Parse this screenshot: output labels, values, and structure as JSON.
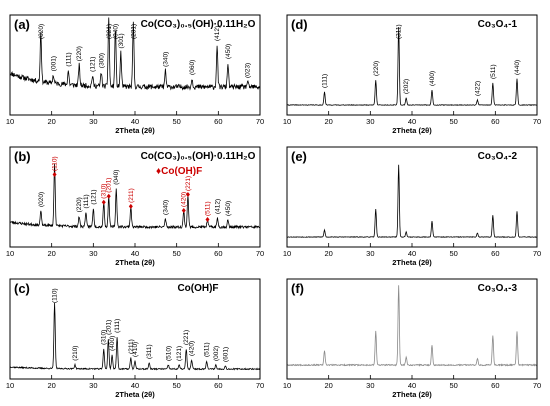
{
  "chart_data": [
    {
      "id": "a",
      "type": "line",
      "panel_label": "(a)",
      "title": "Co(CO₃)₀.₅(OH)·0.11H₂O",
      "title_color": "#000000",
      "xlabel": "2Theta (2θ)",
      "xlim": [
        10,
        70
      ],
      "xticks": [
        10,
        20,
        30,
        40,
        50,
        60,
        70
      ],
      "line_color": "#000000",
      "baseline": 0.28,
      "noise": 0.05,
      "rise": 0.14,
      "seed": 11,
      "series": [
        {
          "peaks": [
            {
              "x": 17.4,
              "h": 0.5,
              "label": "(020)"
            },
            {
              "x": 20.4,
              "h": 0.08,
              "label": "(001)"
            },
            {
              "x": 24.0,
              "h": 0.14,
              "label": "(111)"
            },
            {
              "x": 26.6,
              "h": 0.2,
              "label": "(220)"
            },
            {
              "x": 29.8,
              "h": 0.1,
              "label": "(121)"
            },
            {
              "x": 31.9,
              "h": 0.14,
              "label": "(300)"
            },
            {
              "x": 33.7,
              "h": 0.68,
              "label": "(221)"
            },
            {
              "x": 35.3,
              "h": 0.58,
              "label": "(040)"
            },
            {
              "x": 36.6,
              "h": 0.34,
              "label": "(301)"
            },
            {
              "x": 39.6,
              "h": 0.64,
              "label": "(231)"
            },
            {
              "x": 47.3,
              "h": 0.16,
              "label": "(340)"
            },
            {
              "x": 53.7,
              "h": 0.08,
              "label": "(060)"
            },
            {
              "x": 59.7,
              "h": 0.42,
              "label": "(412)"
            },
            {
              "x": 62.3,
              "h": 0.24,
              "label": "(450)"
            },
            {
              "x": 67.0,
              "h": 0.05,
              "label": "(023)"
            }
          ]
        }
      ]
    },
    {
      "id": "b",
      "type": "line",
      "panel_label": "(b)",
      "title": "Co(CO₃)₀.₅(OH)·0.11H₂O",
      "title_color": "#000000",
      "legend": {
        "symbol": "♦",
        "text": "Co(OH)F",
        "color": "#cc0000"
      },
      "xlabel": "2Theta (2θ)",
      "xlim": [
        10,
        70
      ],
      "xticks": [
        10,
        20,
        30,
        40,
        50,
        60,
        70
      ],
      "line_color": "#000000",
      "baseline": 0.2,
      "noise": 0.025,
      "rise": 0.05,
      "seed": 23,
      "series": [
        {
          "peaks": [
            {
              "x": 17.4,
              "h": 0.14,
              "label": "(020)"
            },
            {
              "x": 20.7,
              "h": 0.62,
              "label": "(110)",
              "marker": true
            },
            {
              "x": 26.6,
              "h": 0.1,
              "label": "(220)"
            },
            {
              "x": 28.2,
              "h": 0.14,
              "label": "(111)"
            },
            {
              "x": 30.0,
              "h": 0.18,
              "label": "(121)"
            },
            {
              "x": 32.5,
              "h": 0.24,
              "label": "(310)",
              "marker": true
            },
            {
              "x": 33.7,
              "h": 0.3,
              "label": "(201)",
              "marker": true
            },
            {
              "x": 35.5,
              "h": 0.38,
              "label": "(040)"
            },
            {
              "x": 39.0,
              "h": 0.2,
              "label": "(211)",
              "marker": true
            },
            {
              "x": 47.3,
              "h": 0.08,
              "label": "(340)"
            },
            {
              "x": 51.7,
              "h": 0.16,
              "label": "(420)",
              "marker": true
            },
            {
              "x": 52.7,
              "h": 0.32,
              "label": "(221)",
              "marker": true
            },
            {
              "x": 57.4,
              "h": 0.07,
              "label": "(511)",
              "marker": true
            },
            {
              "x": 59.8,
              "h": 0.09,
              "label": "(412)"
            },
            {
              "x": 62.3,
              "h": 0.07,
              "label": "(450)"
            }
          ]
        }
      ]
    },
    {
      "id": "c",
      "type": "line",
      "panel_label": "(c)",
      "title": "Co(OH)F",
      "title_color": "#000000",
      "xlabel": "2Theta (2θ)",
      "xlim": [
        10,
        70
      ],
      "xticks": [
        10,
        20,
        30,
        40,
        50,
        60,
        70
      ],
      "line_color": "#000000",
      "baseline": 0.1,
      "noise": 0.012,
      "rise": 0.02,
      "seed": 37,
      "series": [
        {
          "peaks": [
            {
              "x": 20.7,
              "h": 0.66,
              "label": "(110)"
            },
            {
              "x": 25.6,
              "h": 0.04,
              "label": "(210)"
            },
            {
              "x": 32.5,
              "h": 0.2,
              "label": "(310)"
            },
            {
              "x": 33.6,
              "h": 0.3,
              "label": "(201)"
            },
            {
              "x": 34.5,
              "h": 0.14,
              "label": "(400)"
            },
            {
              "x": 35.7,
              "h": 0.32,
              "label": "(111)"
            },
            {
              "x": 39.0,
              "h": 0.11,
              "label": "(211)"
            },
            {
              "x": 40.0,
              "h": 0.08,
              "label": "(410)"
            },
            {
              "x": 43.4,
              "h": 0.06,
              "label": "(311)"
            },
            {
              "x": 48.0,
              "h": 0.04,
              "label": "(510)"
            },
            {
              "x": 50.6,
              "h": 0.04,
              "label": "(121)"
            },
            {
              "x": 52.3,
              "h": 0.2,
              "label": "(221)"
            },
            {
              "x": 53.6,
              "h": 0.09,
              "label": "(420)"
            },
            {
              "x": 57.2,
              "h": 0.08,
              "label": "(511)"
            },
            {
              "x": 59.4,
              "h": 0.04,
              "label": "(002)"
            },
            {
              "x": 61.7,
              "h": 0.03,
              "label": "(601)"
            }
          ]
        }
      ]
    },
    {
      "id": "d",
      "type": "line",
      "panel_label": "(d)",
      "title": "Co₃O₄-1",
      "title_color": "#000000",
      "xlabel": "2Theta (2θ)",
      "xlim": [
        10,
        70
      ],
      "xticks": [
        10,
        20,
        30,
        40,
        50,
        60,
        70
      ],
      "line_color": "#000000",
      "baseline": 0.1,
      "noise": 0.006,
      "rise": 0.0,
      "seed": 41,
      "series": [
        {
          "peaks": [
            {
              "x": 19.0,
              "h": 0.13,
              "label": "(111)"
            },
            {
              "x": 31.3,
              "h": 0.25,
              "label": "(220)"
            },
            {
              "x": 36.8,
              "h": 0.78,
              "label": "(311)"
            },
            {
              "x": 38.6,
              "h": 0.07,
              "label": "(202)"
            },
            {
              "x": 44.8,
              "h": 0.15,
              "label": "(400)"
            },
            {
              "x": 55.7,
              "h": 0.05,
              "label": "(422)"
            },
            {
              "x": 59.4,
              "h": 0.22,
              "label": "(511)"
            },
            {
              "x": 65.2,
              "h": 0.26,
              "label": "(440)"
            }
          ]
        }
      ]
    },
    {
      "id": "e",
      "type": "line",
      "panel_label": "(e)",
      "title": "Co₃O₄-2",
      "title_color": "#000000",
      "xlabel": "2Theta (2θ)",
      "xlim": [
        10,
        70
      ],
      "xticks": [
        10,
        20,
        30,
        40,
        50,
        60,
        70
      ],
      "line_color": "#000000",
      "baseline": 0.1,
      "noise": 0.006,
      "rise": 0.0,
      "seed": 53,
      "series": [
        {
          "peaks": [
            {
              "x": 19.0,
              "h": 0.07
            },
            {
              "x": 31.3,
              "h": 0.28
            },
            {
              "x": 36.8,
              "h": 0.72
            },
            {
              "x": 38.6,
              "h": 0.05
            },
            {
              "x": 44.8,
              "h": 0.16
            },
            {
              "x": 55.7,
              "h": 0.04
            },
            {
              "x": 59.4,
              "h": 0.22
            },
            {
              "x": 65.2,
              "h": 0.26
            }
          ]
        }
      ]
    },
    {
      "id": "f",
      "type": "line",
      "panel_label": "(f)",
      "title": "Co₃O₄-3",
      "title_color": "#000000",
      "xlabel": "2Theta (2θ)",
      "xlim": [
        10,
        70
      ],
      "xticks": [
        10,
        20,
        30,
        40,
        50,
        60,
        70
      ],
      "line_color": "#8a8a8a",
      "baseline": 0.14,
      "noise": 0.012,
      "rise": 0.0,
      "seed": 67,
      "series": [
        {
          "peaks": [
            {
              "x": 19.0,
              "h": 0.14
            },
            {
              "x": 31.3,
              "h": 0.34
            },
            {
              "x": 36.8,
              "h": 0.8
            },
            {
              "x": 38.6,
              "h": 0.08
            },
            {
              "x": 44.8,
              "h": 0.2
            },
            {
              "x": 55.7,
              "h": 0.07
            },
            {
              "x": 59.4,
              "h": 0.3
            },
            {
              "x": 65.2,
              "h": 0.34
            }
          ]
        }
      ]
    }
  ]
}
